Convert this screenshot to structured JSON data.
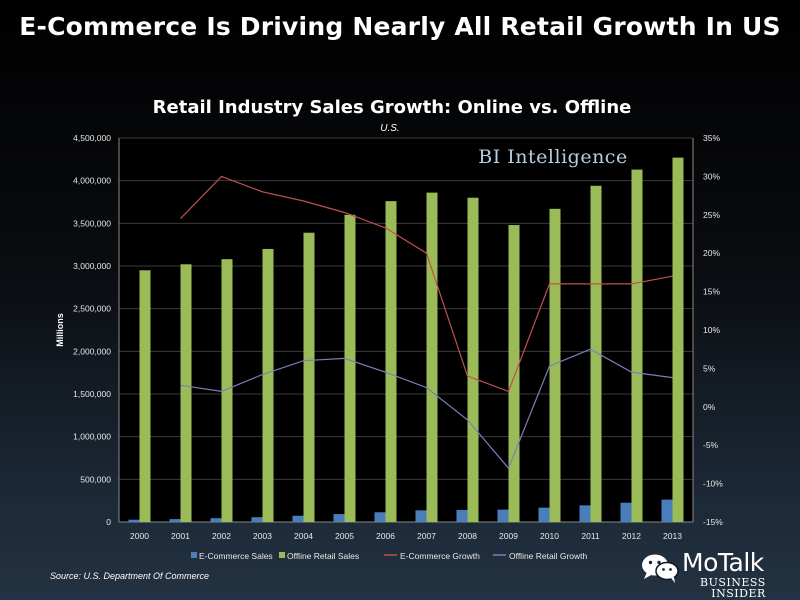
{
  "header": {
    "title": "E-Commerce Is Driving Nearly All Retail Growth In US"
  },
  "chart_data": {
    "type": "bar",
    "title": "Retail Industry Sales Growth: Online vs. Offline",
    "subtitle": "U.S.",
    "watermark": "BI Intelligence",
    "ylabel": "Millions",
    "categories": [
      "2000",
      "2001",
      "2002",
      "2003",
      "2004",
      "2005",
      "2006",
      "2007",
      "2008",
      "2009",
      "2010",
      "2011",
      "2012",
      "2013"
    ],
    "ylim": [
      0,
      4500000
    ],
    "y2lim": [
      -15,
      35
    ],
    "y_ticks": [
      "0",
      "500,000",
      "1,000,000",
      "1,500,000",
      "2,000,000",
      "2,500,000",
      "3,000,000",
      "3,500,000",
      "4,000,000",
      "4,500,000"
    ],
    "y2_ticks": [
      "-15%",
      "-10%",
      "-5%",
      "0%",
      "5%",
      "10%",
      "15%",
      "20%",
      "25%",
      "30%",
      "35%"
    ],
    "series": [
      {
        "name": "E-Commerce Sales",
        "kind": "bar",
        "axis": "left",
        "color": "#4a7ebb",
        "values": [
          27000,
          34000,
          45000,
          56000,
          73000,
          93000,
          114000,
          137000,
          142000,
          145000,
          168000,
          195000,
          226000,
          262000
        ]
      },
      {
        "name": "Offline Retail Sales",
        "kind": "bar",
        "axis": "left",
        "color": "#9bbb59",
        "values": [
          2950000,
          3020000,
          3080000,
          3200000,
          3390000,
          3600000,
          3760000,
          3860000,
          3800000,
          3480000,
          3670000,
          3940000,
          4130000,
          4270000
        ]
      },
      {
        "name": "E-Commerce Growth",
        "kind": "line",
        "axis": "right",
        "color": "#c0504d",
        "values": [
          null,
          24.5,
          30,
          28,
          26.8,
          25.3,
          23.3,
          20,
          4,
          2,
          16,
          16,
          16,
          17
        ]
      },
      {
        "name": "Offline Retail Growth",
        "kind": "line",
        "axis": "right",
        "color": "#7b7fb8",
        "values": [
          null,
          2.8,
          2,
          4.2,
          6,
          6.3,
          4.5,
          2.5,
          -1.7,
          -8,
          5.3,
          7.5,
          4.5,
          3.8
        ]
      }
    ],
    "legend_position": "bottom"
  },
  "footer": {
    "source": "Source: U.S. Department Of Commerce",
    "logo_brand": "MoTalk",
    "logo_line1": "BUSINESS",
    "logo_line2": "INSIDER"
  },
  "colors": {
    "background": "#0a0c10",
    "text": "#ffffff",
    "grid": "#3a3a3a"
  }
}
